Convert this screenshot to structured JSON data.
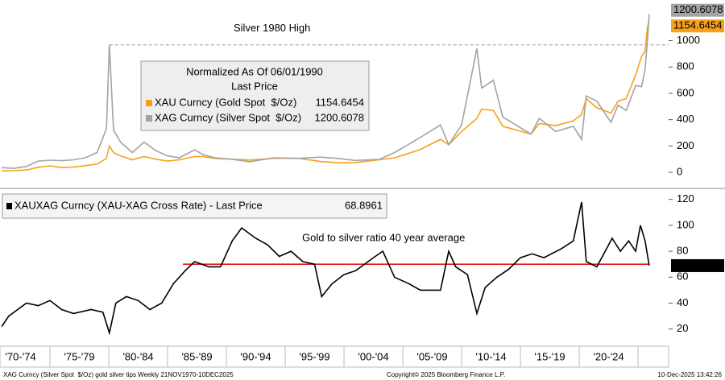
{
  "chart_data": [
    {
      "type": "line",
      "legend_title": "Normalized As Of 06/01/1990",
      "legend_subtitle": "Last Price",
      "x": [
        1970.9,
        1972,
        1973,
        1974,
        1975,
        1976,
        1977,
        1978,
        1979,
        1979.8,
        1980.05,
        1980.4,
        1981,
        1982,
        1983,
        1984,
        1985,
        1986,
        1987.3,
        1988,
        1989,
        1990.4,
        1992,
        1994,
        1996,
        1998,
        1999.5,
        2001,
        2003,
        2004.3,
        2006.4,
        2008.2,
        2008.9,
        2010,
        2011.3,
        2011.7,
        2012.7,
        2013.5,
        2015.9,
        2016.6,
        2018,
        2019.5,
        2020.2,
        2020.6,
        2021.5,
        2022.7,
        2023.3,
        2024,
        2024.8,
        2025.3,
        2025.6,
        2025.8,
        2025.95
      ],
      "series": [
        {
          "name": "XAU Curncy (Gold Spot  $/Oz)",
          "color": "#f7a11a",
          "values": [
            11,
            13,
            18,
            38,
            49,
            36,
            40,
            50,
            62,
            105,
            200,
            150,
            125,
            95,
            120,
            100,
            85,
            95,
            120,
            120,
            105,
            100,
            93,
            106,
            108,
            82,
            72,
            74,
            95,
            110,
            170,
            250,
            210,
            310,
            410,
            480,
            470,
            350,
            290,
            370,
            355,
            390,
            440,
            560,
            490,
            450,
            540,
            560,
            740,
            880,
            920,
            1100,
            1154.6454
          ]
        },
        {
          "name": "XAG Curncy (Silver Spot  $/Oz)",
          "color": "#a3a3a3",
          "values": [
            35,
            30,
            45,
            85,
            92,
            88,
            95,
            110,
            150,
            330,
            968,
            320,
            230,
            150,
            230,
            165,
            125,
            110,
            170,
            135,
            110,
            100,
            80,
            110,
            105,
            115,
            105,
            90,
            98,
            150,
            260,
            360,
            210,
            360,
            940,
            640,
            700,
            420,
            290,
            410,
            310,
            350,
            250,
            580,
            540,
            380,
            510,
            470,
            660,
            650,
            780,
            1000,
            1200.6078
          ]
        }
      ],
      "annotations": [
        {
          "text": "Silver 1980 High",
          "value": 968,
          "from": 1980.05
        }
      ],
      "xlim": [
        1970.75,
        2027.6
      ],
      "ylim": [
        -110,
        1260
      ],
      "yticks": [
        0,
        200,
        400,
        600,
        800,
        1000
      ]
    },
    {
      "type": "line",
      "x": [
        1970.9,
        1971.5,
        1973,
        1974,
        1975,
        1976,
        1977,
        1978.5,
        1979.5,
        1980.05,
        1980.6,
        1981.5,
        1982.5,
        1983.5,
        1984.5,
        1985.5,
        1986.5,
        1987.3,
        1988.5,
        1989.5,
        1990.5,
        1991.3,
        1992.5,
        1993.5,
        1994.5,
        1995.5,
        1996.5,
        1997.5,
        1998.1,
        1999,
        2000,
        2001,
        2002.5,
        2003.3,
        2004.3,
        2005.5,
        2006.5,
        2008.2,
        2008.9,
        2009.5,
        2010.5,
        2011.3,
        2012,
        2013,
        2014,
        2015,
        2016,
        2017,
        2018.5,
        2019.5,
        2020.2,
        2020.6,
        2021.5,
        2022.8,
        2023.5,
        2024.2,
        2024.8,
        2025.2,
        2025.6,
        2025.95
      ],
      "series": [
        {
          "name": "XAUXAG Curncy (XAU-XAG Cross Rate) - Last Price",
          "color": "#000000",
          "values": [
            22,
            30,
            40,
            38,
            42,
            35,
            32,
            35,
            33,
            17,
            40,
            45,
            42,
            35,
            40,
            55,
            65,
            72,
            68,
            68,
            88,
            98,
            90,
            85,
            76,
            80,
            72,
            70,
            45,
            55,
            62,
            65,
            75,
            80,
            60,
            55,
            50,
            50,
            80,
            68,
            62,
            32,
            52,
            60,
            66,
            75,
            78,
            75,
            82,
            88,
            118,
            72,
            68,
            90,
            80,
            88,
            80,
            100,
            88,
            68.8961
          ]
        }
      ],
      "annotations": [
        {
          "text": "Gold to silver ratio 40 year average",
          "value": 70,
          "x": [
            1986.3,
            2025.95
          ],
          "color": "#e8141a"
        }
      ],
      "xlim": [
        1970.75,
        2027.6
      ],
      "ylim": [
        8,
        126
      ],
      "yticks": [
        20,
        40,
        60,
        80,
        100,
        120
      ],
      "xticks": [
        1975,
        1980,
        1985,
        1990,
        1995,
        2000,
        2005,
        2010,
        2015,
        2020,
        2025
      ],
      "x_periods": [
        {
          "value": 1972.5,
          "label": "'70-'74"
        },
        {
          "value": 1977.5,
          "label": "'75-'79"
        },
        {
          "value": 1982.5,
          "label": "'80-'84"
        },
        {
          "value": 1987.5,
          "label": "'85-'89"
        },
        {
          "value": 1992.5,
          "label": "'90-'94"
        },
        {
          "value": 1997.5,
          "label": "'95-'99"
        },
        {
          "value": 2002.5,
          "label": "'00-'04"
        },
        {
          "value": 2007.5,
          "label": "'05-'09"
        },
        {
          "value": 2012.5,
          "label": "'10-'14"
        },
        {
          "value": 2017.5,
          "label": "'15-'19"
        },
        {
          "value": 2022.5,
          "label": "'20-'24"
        }
      ]
    }
  ],
  "footer": {
    "source": "XAG Curncy (Silver Spot  $/Oz) gold silver tips Weekly 21NOV1970-10DEC2025",
    "copyright": "Copyright© 2025 Bloomberg Finance L.P.",
    "timestamp": "10-Dec-2025 13:42:26"
  }
}
